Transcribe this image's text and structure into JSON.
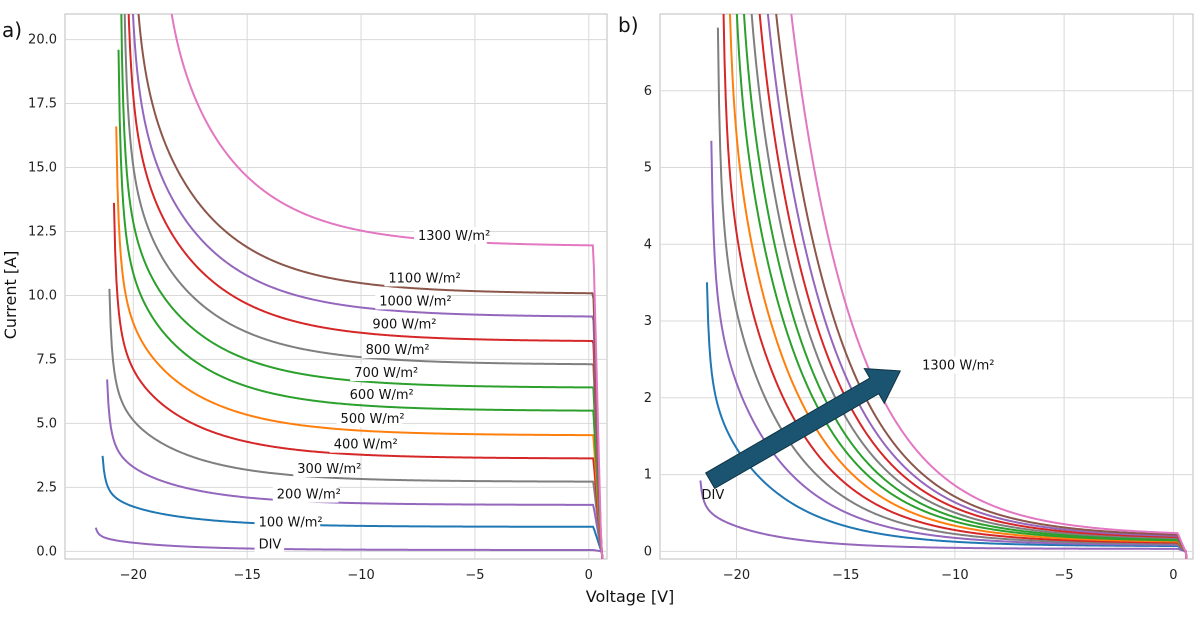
{
  "xlabel": "Voltage [V]",
  "chart_data": [
    {
      "type": "line",
      "panel_label": "a)",
      "ylabel": "Current [A]",
      "xlim": [
        -23,
        0.8
      ],
      "ylim": [
        -0.3,
        21
      ],
      "xticks": [
        -20,
        -15,
        -10,
        -5,
        0
      ],
      "yticks": [
        0.0,
        2.5,
        5.0,
        7.5,
        10.0,
        12.5,
        15.0,
        17.5,
        20.0
      ],
      "xtick_labels": [
        "−20",
        "−15",
        "−10",
        "−5",
        "0"
      ],
      "ytick_labels": [
        "0.0",
        "2.5",
        "5.0",
        "7.5",
        "10.0",
        "12.5",
        "15.0",
        "17.5",
        "20.0"
      ],
      "grid": true,
      "series": [
        {
          "name": "DIV",
          "color": "#9467bd",
          "isc": 0.05,
          "knee": 0.5,
          "vk": -21.8
        },
        {
          "name": "100 W/m²",
          "color": "#1f77b4",
          "isc": 0.95,
          "knee": 2.0,
          "vk": -21.5
        },
        {
          "name": "200 W/m²",
          "color": "#9467bd",
          "isc": 1.8,
          "knee": 3.6,
          "vk": -21.3
        },
        {
          "name": "300 W/m²",
          "color": "#7f7f7f",
          "isc": 2.7,
          "knee": 5.5,
          "vk": -21.2
        },
        {
          "name": "400 W/m²",
          "color": "#d62728",
          "isc": 3.6,
          "knee": 7.3,
          "vk": -21.0
        },
        {
          "name": "500 W/m²",
          "color": "#ff7f0e",
          "isc": 4.5,
          "knee": 8.9,
          "vk": -20.9
        },
        {
          "name": "600 W/m²",
          "color": "#2ca02c",
          "isc": 5.45,
          "knee": 10.5,
          "vk": -20.8
        },
        {
          "name": "700 W/m²",
          "color": "#2ca02c",
          "isc": 6.35,
          "knee": 12.0,
          "vk": -20.7
        },
        {
          "name": "800 W/m²",
          "color": "#7f7f7f",
          "isc": 7.25,
          "knee": 13.5,
          "vk": -20.6
        },
        {
          "name": "900 W/m²",
          "color": "#d62728",
          "isc": 8.15,
          "knee": 15.2,
          "vk": -20.5
        },
        {
          "name": "1000 W/m²",
          "color": "#9467bd",
          "isc": 9.1,
          "knee": 16.6,
          "vk": -20.4
        },
        {
          "name": "1100 W/m²",
          "color": "#8c564b",
          "isc": 10.0,
          "knee": 18.2,
          "vk": -20.3
        },
        {
          "name": "1300 W/m²",
          "color": "#e377c2",
          "isc": 11.85,
          "knee": 20.5,
          "vk": -19.2
        }
      ],
      "labels": [
        {
          "text": "DIV",
          "x": -14.5,
          "y": 0.15
        },
        {
          "text": "100 W/m²",
          "x": -14.5,
          "y": 1.0
        },
        {
          "text": "200 W/m²",
          "x": -13.7,
          "y": 2.1
        },
        {
          "text": "300 W/m²",
          "x": -12.8,
          "y": 3.1
        },
        {
          "text": "400 W/m²",
          "x": -11.2,
          "y": 4.05
        },
        {
          "text": "500 W/m²",
          "x": -10.9,
          "y": 5.05
        },
        {
          "text": "600 W/m²",
          "x": -10.5,
          "y": 6.0
        },
        {
          "text": "700 W/m²",
          "x": -10.3,
          "y": 6.85
        },
        {
          "text": "800 W/m²",
          "x": -9.8,
          "y": 7.75
        },
        {
          "text": "900 W/m²",
          "x": -9.5,
          "y": 8.75
        },
        {
          "text": "1000 W/m²",
          "x": -9.2,
          "y": 9.65
        },
        {
          "text": "1100 W/m²",
          "x": -8.8,
          "y": 10.55
        },
        {
          "text": "1300 W/m²",
          "x": -7.5,
          "y": 12.2
        }
      ]
    },
    {
      "type": "line",
      "panel_label": "b)",
      "ylabel": "",
      "xlim": [
        -23.5,
        0.9
      ],
      "ylim": [
        -0.1,
        7.0
      ],
      "xticks": [
        -20,
        -15,
        -10,
        -5,
        0
      ],
      "yticks": [
        0,
        1,
        2,
        3,
        4,
        5,
        6
      ],
      "xtick_labels": [
        "−20",
        "−15",
        "−10",
        "−5",
        "0"
      ],
      "ytick_labels": [
        "0",
        "1",
        "2",
        "3",
        "4",
        "5",
        "6"
      ],
      "grid": true,
      "series": [
        {
          "name": "DIV",
          "color": "#9467bd",
          "isc": 0.03,
          "knee": 0.5,
          "vk": -21.8
        },
        {
          "name": "100 W/m²",
          "color": "#1f77b4",
          "isc": 0.06,
          "knee": 1.9,
          "vk": -21.5
        },
        {
          "name": "200 W/m²",
          "color": "#9467bd",
          "isc": 0.07,
          "knee": 2.9,
          "vk": -21.3
        },
        {
          "name": "300 W/m²",
          "color": "#7f7f7f",
          "isc": 0.08,
          "knee": 3.7,
          "vk": -21.0
        },
        {
          "name": "400 W/m²",
          "color": "#d62728",
          "isc": 0.09,
          "knee": 4.5,
          "vk": -20.8
        },
        {
          "name": "500 W/m²",
          "color": "#ff7f0e",
          "isc": 0.1,
          "knee": 5.3,
          "vk": -20.6
        },
        {
          "name": "600 W/m²",
          "color": "#2ca02c",
          "isc": 0.11,
          "knee": 6.0,
          "vk": -20.4
        },
        {
          "name": "700 W/m²",
          "color": "#2ca02c",
          "isc": 0.12,
          "knee": 6.6,
          "vk": -20.2
        },
        {
          "name": "800 W/m²",
          "color": "#7f7f7f",
          "isc": 0.13,
          "knee": 7.2,
          "vk": -20.0
        },
        {
          "name": "900 W/m²",
          "color": "#d62728",
          "isc": 0.14,
          "knee": 7.8,
          "vk": -19.8
        },
        {
          "name": "1000 W/m²",
          "color": "#9467bd",
          "isc": 0.15,
          "knee": 8.4,
          "vk": -19.6
        },
        {
          "name": "1100 W/m²",
          "color": "#8c564b",
          "isc": 0.16,
          "knee": 9.0,
          "vk": -19.4
        },
        {
          "name": "1300 W/m²",
          "color": "#e377c2",
          "isc": 0.17,
          "knee": 10.0,
          "vk": -19.0
        }
      ],
      "arrow": {
        "from": [
          -21.2,
          0.92
        ],
        "to": [
          -12.5,
          2.35
        ],
        "color": "#1b5470"
      },
      "arrow_start_label": {
        "text": "DIV",
        "x": -21.6,
        "y": 0.75
      },
      "arrow_end_label": {
        "text": "1300 W/m²",
        "x": -11.5,
        "y": 2.38
      }
    }
  ]
}
